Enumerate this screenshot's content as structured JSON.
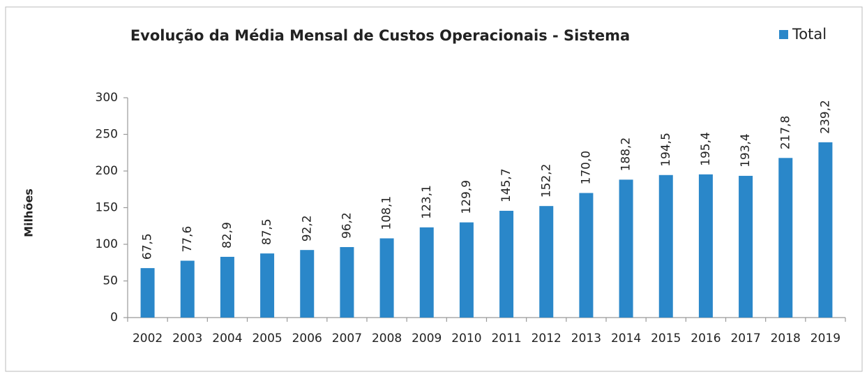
{
  "chart_data": {
    "type": "bar",
    "title": "Evolução da Média Mensal de Custos Operacionais - Sistema",
    "ylabel": "Milhões",
    "categories": [
      "2002",
      "2003",
      "2004",
      "2005",
      "2006",
      "2007",
      "2008",
      "2009",
      "2010",
      "2011",
      "2012",
      "2013",
      "2014",
      "2015",
      "2016",
      "2017",
      "2018",
      "2019"
    ],
    "series": [
      {
        "name": "Total",
        "color": "#2a87c9",
        "values": [
          67.5,
          77.6,
          82.9,
          87.5,
          92.2,
          96.2,
          108.1,
          123.1,
          129.9,
          145.7,
          152.2,
          170.0,
          188.2,
          194.5,
          195.4,
          193.4,
          217.8,
          239.2
        ],
        "value_labels": [
          "67,5",
          "77,6",
          "82,9",
          "87,5",
          "92,2",
          "96,2",
          "108,1",
          "123,1",
          "129,9",
          "145,7",
          "152,2",
          "170,0",
          "188,2",
          "194,5",
          "195,4",
          "193,4",
          "217,8",
          "239,2"
        ]
      }
    ],
    "ylim": [
      0,
      300
    ],
    "yticks": [
      0,
      50,
      100,
      150,
      200,
      250,
      300
    ],
    "grid": false,
    "legend": "top-right"
  }
}
